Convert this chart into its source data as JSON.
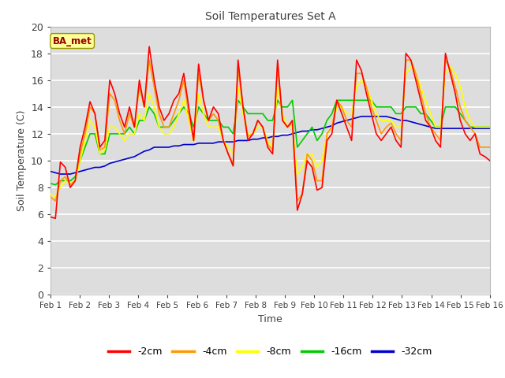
{
  "title": "Soil Temperatures Set A",
  "xlabel": "Time",
  "ylabel": "Soil Temperature (C)",
  "ylim": [
    0,
    20
  ],
  "xlim": [
    0,
    15
  ],
  "xtick_labels": [
    "Feb 1",
    "Feb 2",
    "Feb 3",
    "Feb 4",
    "Feb 5",
    "Feb 6",
    "Feb 7",
    "Feb 8",
    "Feb 9",
    "Feb 10",
    "Feb 11",
    "Feb 12",
    "Feb 13",
    "Feb 14",
    "Feb 15",
    "Feb 16"
  ],
  "ytick_vals": [
    0,
    2,
    4,
    6,
    8,
    10,
    12,
    14,
    16,
    18,
    20
  ],
  "annotation_text": "BA_met",
  "annotation_color": "#990000",
  "annotation_bg": "#ffff99",
  "fig_bg_color": "#ffffff",
  "plot_bg_color": "#dddddd",
  "grid_color": "#ffffff",
  "colors": {
    "-2cm": "#ff0000",
    "-4cm": "#ff9900",
    "-8cm": "#ffff00",
    "-16cm": "#00cc00",
    "-32cm": "#0000cc"
  },
  "linewidth": 1.2,
  "series": {
    "-2cm": [
      5.8,
      5.7,
      9.9,
      9.5,
      8.0,
      8.5,
      11.0,
      12.5,
      14.4,
      13.5,
      11.0,
      11.5,
      16.0,
      15.0,
      13.5,
      12.5,
      14.0,
      12.5,
      16.0,
      14.0,
      18.5,
      16.0,
      14.0,
      13.0,
      13.5,
      14.5,
      15.0,
      16.5,
      14.0,
      11.5,
      17.2,
      14.5,
      13.0,
      14.0,
      13.5,
      11.5,
      10.5,
      9.6,
      17.5,
      14.0,
      11.5,
      12.0,
      13.0,
      12.5,
      11.0,
      10.5,
      17.5,
      13.0,
      12.5,
      13.0,
      6.3,
      7.5,
      10.0,
      9.5,
      7.8,
      8.0,
      11.5,
      12.0,
      14.5,
      13.5,
      12.5,
      11.5,
      17.5,
      16.7,
      15.0,
      13.5,
      12.0,
      11.5,
      12.0,
      12.5,
      11.5,
      11.0,
      18.0,
      17.5,
      16.0,
      14.5,
      13.0,
      12.5,
      11.5,
      11.0,
      18.0,
      16.5,
      15.0,
      13.0,
      12.0,
      11.5,
      12.0,
      10.5,
      10.3,
      10.0
    ],
    "-4cm": [
      7.3,
      7.0,
      8.5,
      8.8,
      8.2,
      8.5,
      10.5,
      12.0,
      14.0,
      13.5,
      10.8,
      11.0,
      15.0,
      14.5,
      13.0,
      12.0,
      13.5,
      12.5,
      15.5,
      14.0,
      17.5,
      15.5,
      13.5,
      12.5,
      12.5,
      13.5,
      14.5,
      16.0,
      13.5,
      11.5,
      16.5,
      14.5,
      13.0,
      13.5,
      13.0,
      11.5,
      10.5,
      9.8,
      16.8,
      14.0,
      11.8,
      12.0,
      13.0,
      12.5,
      11.2,
      10.8,
      17.0,
      13.0,
      12.5,
      12.8,
      7.0,
      7.5,
      10.5,
      10.0,
      8.5,
      8.5,
      12.0,
      12.5,
      14.5,
      14.0,
      13.0,
      12.5,
      16.5,
      16.5,
      15.5,
      14.0,
      13.0,
      12.0,
      12.5,
      12.8,
      12.0,
      11.5,
      17.5,
      17.5,
      16.5,
      15.0,
      13.5,
      12.5,
      12.0,
      11.5,
      17.5,
      16.8,
      15.5,
      14.0,
      13.0,
      12.5,
      12.0,
      11.0,
      11.0,
      11.0
    ],
    "-8cm": [
      7.5,
      7.3,
      8.0,
      8.5,
      8.3,
      8.5,
      10.0,
      11.5,
      13.0,
      12.5,
      10.5,
      10.8,
      12.5,
      12.5,
      12.0,
      11.5,
      12.0,
      12.0,
      13.5,
      13.0,
      15.0,
      14.0,
      12.5,
      12.0,
      12.0,
      12.5,
      13.5,
      14.5,
      13.0,
      11.5,
      15.0,
      13.5,
      12.5,
      12.5,
      12.5,
      11.5,
      11.0,
      10.5,
      15.5,
      13.5,
      12.0,
      12.0,
      12.5,
      12.5,
      11.5,
      11.0,
      15.5,
      13.5,
      12.5,
      12.5,
      9.0,
      9.5,
      10.5,
      10.5,
      9.5,
      10.0,
      12.0,
      12.5,
      14.0,
      14.0,
      13.5,
      13.5,
      15.5,
      16.0,
      15.5,
      14.5,
      13.5,
      13.0,
      13.0,
      13.0,
      12.5,
      12.5,
      16.5,
      17.0,
      16.5,
      15.5,
      14.5,
      13.5,
      12.5,
      12.5,
      16.5,
      17.0,
      16.5,
      15.5,
      14.0,
      13.0,
      12.5,
      12.5,
      12.5,
      12.5
    ],
    "-16cm": [
      8.3,
      8.2,
      8.5,
      8.5,
      8.5,
      8.8,
      10.0,
      11.0,
      12.0,
      12.0,
      10.5,
      10.5,
      12.0,
      12.0,
      12.0,
      12.0,
      12.5,
      12.0,
      13.0,
      13.0,
      14.0,
      13.5,
      12.5,
      12.5,
      12.5,
      13.0,
      13.5,
      14.0,
      13.5,
      12.5,
      14.0,
      13.5,
      13.0,
      13.0,
      13.0,
      12.5,
      12.5,
      12.0,
      14.5,
      14.0,
      13.5,
      13.5,
      13.5,
      13.5,
      13.0,
      13.0,
      14.5,
      14.0,
      14.0,
      14.5,
      11.0,
      11.5,
      12.0,
      12.5,
      11.5,
      12.0,
      13.0,
      13.5,
      14.5,
      14.5,
      14.5,
      14.5,
      14.5,
      14.5,
      14.5,
      14.5,
      14.0,
      14.0,
      14.0,
      14.0,
      13.5,
      13.5,
      14.0,
      14.0,
      14.0,
      13.5,
      13.5,
      13.0,
      12.5,
      12.5,
      14.0,
      14.0,
      14.0,
      13.5,
      13.0,
      12.5,
      12.5,
      12.5,
      12.5,
      12.5
    ],
    "-32cm": [
      9.2,
      9.1,
      9.0,
      9.0,
      9.0,
      9.1,
      9.2,
      9.3,
      9.4,
      9.5,
      9.5,
      9.6,
      9.8,
      9.9,
      10.0,
      10.1,
      10.2,
      10.3,
      10.5,
      10.7,
      10.8,
      11.0,
      11.0,
      11.0,
      11.0,
      11.1,
      11.1,
      11.2,
      11.2,
      11.2,
      11.3,
      11.3,
      11.3,
      11.3,
      11.4,
      11.4,
      11.4,
      11.4,
      11.5,
      11.5,
      11.5,
      11.6,
      11.6,
      11.7,
      11.7,
      11.8,
      11.8,
      11.9,
      11.9,
      12.0,
      12.1,
      12.2,
      12.2,
      12.3,
      12.3,
      12.4,
      12.5,
      12.6,
      12.8,
      12.9,
      13.0,
      13.1,
      13.2,
      13.3,
      13.3,
      13.3,
      13.3,
      13.3,
      13.3,
      13.2,
      13.1,
      13.0,
      13.0,
      12.9,
      12.8,
      12.7,
      12.6,
      12.5,
      12.4,
      12.4,
      12.4,
      12.4,
      12.4,
      12.4,
      12.4,
      12.4,
      12.4,
      12.4,
      12.4,
      12.4
    ]
  }
}
